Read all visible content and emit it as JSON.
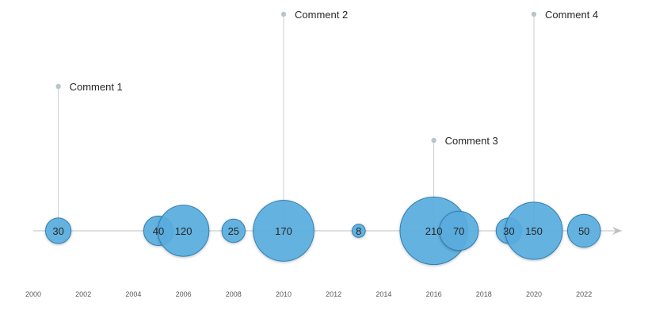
{
  "chart_data": {
    "type": "bubble",
    "title": "",
    "xlabel": "",
    "ylabel": "",
    "xlim": [
      2000,
      2023.5
    ],
    "x_ticks": [
      "2000",
      "2002",
      "2004",
      "2006",
      "2008",
      "2010",
      "2012",
      "2014",
      "2016",
      "2018",
      "2020",
      "2022"
    ],
    "grid": false,
    "legend": "none",
    "colors": {
      "bubble_fill": "#5aaee0",
      "bubble_stroke": "#2f7fb3",
      "bubble_highlight": "#2d9de6",
      "axis": "#bfbfbf",
      "leader": "#c8d0d4",
      "marker": "#b8c6cc"
    },
    "bubbles": [
      {
        "x": 2001,
        "value": 30,
        "label": "30"
      },
      {
        "x": 2005,
        "value": 40,
        "label": "40"
      },
      {
        "x": 2006,
        "value": 120,
        "label": "120"
      },
      {
        "x": 2008,
        "value": 25,
        "label": "25"
      },
      {
        "x": 2010,
        "value": 170,
        "label": "170"
      },
      {
        "x": 2013,
        "value": 8,
        "label": "8"
      },
      {
        "x": 2016,
        "value": 210,
        "label": "210"
      },
      {
        "x": 2017,
        "value": 70,
        "label": "70"
      },
      {
        "x": 2019,
        "value": 30,
        "label": "30"
      },
      {
        "x": 2020,
        "value": 150,
        "label": "150"
      },
      {
        "x": 2022,
        "value": 50,
        "label": "50"
      }
    ],
    "comments": [
      {
        "x": 2001,
        "text": "Comment 1"
      },
      {
        "x": 2010,
        "text": "Comment 2"
      },
      {
        "x": 2016,
        "text": "Comment 3"
      },
      {
        "x": 2020,
        "text": "Comment 4"
      }
    ]
  }
}
